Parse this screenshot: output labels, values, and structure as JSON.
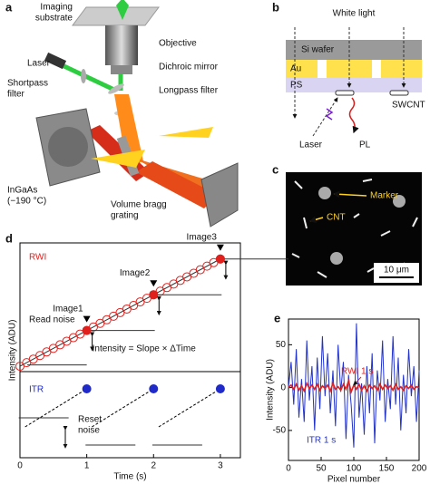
{
  "panel_labels": [
    "a",
    "b",
    "c",
    "d",
    "e"
  ],
  "panel_a": {
    "labels": [
      "Imaging",
      "substrate",
      "Objective",
      "Laser",
      "Shortpass",
      "filter",
      "Dichroic mirror",
      "Longpass filter",
      "InGaAs",
      "(−190 °C)",
      "Volume bragg",
      "grating"
    ]
  },
  "panel_b": {
    "labels": [
      "White light",
      "Si wafer",
      "Au",
      "PS",
      "SWCNT",
      "Laser",
      "PL"
    ]
  },
  "panel_c": {
    "labels": [
      "Marker",
      "CNT",
      "10 μm"
    ]
  },
  "chart_data": [
    {
      "type": "scatter",
      "xlabel": "Time (s)",
      "ylabel": "Intensity (ADU)",
      "xlim": [
        0,
        3.3
      ],
      "xticks": [
        0,
        1,
        2,
        3
      ],
      "ylim": [
        -1.5,
        34.5
      ],
      "y2lim": [
        0,
        10
      ],
      "series": [
        {
          "name": "RWI",
          "color": "#e0201c",
          "x": [
            0,
            0.1,
            0.2,
            0.3,
            0.4,
            0.5,
            0.6,
            0.7,
            0.8,
            0.9,
            1,
            1.1,
            1.2,
            1.3,
            1.4,
            1.5,
            1.6,
            1.7,
            1.8,
            1.9,
            2,
            2.1,
            2.2,
            2.3,
            2.4,
            2.5,
            2.6,
            2.7,
            2.8,
            2.9,
            3
          ],
          "values": [
            0,
            1,
            2,
            3,
            4,
            5,
            6,
            7,
            8,
            9,
            10,
            11,
            12,
            13,
            14,
            15,
            16,
            17,
            18,
            19,
            20,
            21,
            22,
            23,
            24,
            25,
            26,
            27,
            28,
            29,
            30
          ]
        },
        {
          "color": "#e0201c",
          "x": [
            1,
            2,
            3
          ],
          "values": [
            10,
            20,
            30
          ],
          "labels": [
            "Image1",
            "Image2",
            "Image3"
          ]
        },
        {
          "name": "ITR",
          "color": "#1f2ac8",
          "axis": "y2",
          "x": [
            1,
            2,
            3
          ],
          "values": [
            8,
            8,
            8
          ]
        }
      ],
      "annotations": [
        "Read noise",
        "Intensity = Slope × ΔTime",
        "Reset",
        "noise"
      ]
    },
    {
      "type": "line",
      "xlabel": "Pixel number",
      "ylabel": "Intensity (ADU)",
      "xlim": [
        0,
        200
      ],
      "xticks": [
        0,
        50,
        100,
        150,
        200
      ],
      "ylim": [
        -85,
        80
      ],
      "yticks": [
        -50,
        0,
        50
      ],
      "x": [
        0,
        4,
        8,
        12,
        16,
        20,
        24,
        28,
        32,
        36,
        40,
        44,
        48,
        52,
        56,
        60,
        64,
        68,
        72,
        76,
        80,
        84,
        88,
        92,
        96,
        100,
        104,
        108,
        112,
        116,
        120,
        124,
        128,
        132,
        136,
        140,
        144,
        148,
        152,
        156,
        160,
        164,
        168,
        172,
        176,
        180,
        184,
        188,
        192,
        196,
        200
      ],
      "series": [
        {
          "name": "ITR 1 s",
          "color": "#2233cc",
          "values": [
            0,
            30,
            -20,
            45,
            -35,
            10,
            -40,
            55,
            -15,
            25,
            -50,
            35,
            -25,
            60,
            -10,
            40,
            -30,
            20,
            -45,
            50,
            -5,
            30,
            -60,
            15,
            -20,
            -70,
            75,
            -35,
            5,
            -55,
            25,
            -30,
            40,
            -65,
            20,
            -15,
            55,
            -40,
            10,
            -25,
            60,
            -20,
            35,
            -50,
            15,
            -30,
            45,
            -10,
            25,
            -40,
            20
          ]
        },
        {
          "name": "RWI 1 s",
          "color": "#e02020",
          "values": [
            0,
            3,
            -2,
            4,
            -3,
            2,
            -4,
            5,
            -1,
            3,
            -2,
            4,
            -3,
            2,
            -1,
            3,
            -4,
            5,
            -2,
            1,
            -3,
            4,
            -2,
            8,
            -5,
            3,
            -2,
            4,
            -3,
            2,
            -4,
            3,
            -1,
            2,
            -3,
            4,
            -2,
            3,
            -1,
            2,
            -3,
            4,
            -2,
            1,
            -3,
            2,
            -1,
            3,
            -2,
            1,
            0
          ]
        }
      ]
    }
  ]
}
